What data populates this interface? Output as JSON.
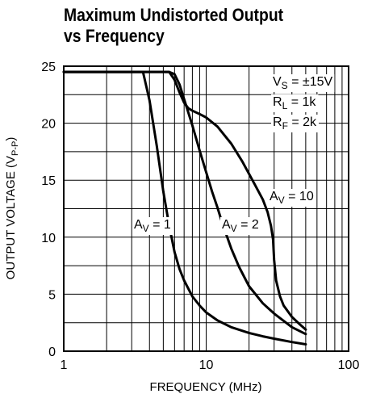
{
  "chart_data": {
    "type": "line",
    "title_lines": [
      "Maximum Undistorted Output",
      "vs Frequency"
    ],
    "xlabel": "FREQUENCY (MHz)",
    "ylabel": "OUTPUT VOLTAGE (V",
    "ylabel_sub": "P-P",
    "ylabel_close": ")",
    "x_scale": "log",
    "xlim": [
      1,
      100
    ],
    "ylim": [
      0,
      25
    ],
    "x_ticks": [
      1,
      10,
      100
    ],
    "y_ticks": [
      0,
      5,
      10,
      15,
      20,
      25
    ],
    "grid": true,
    "conditions": [
      {
        "main": "V",
        "sub": "S",
        "rest": " = ±15V"
      },
      {
        "main": "R",
        "sub": "L",
        "rest": " = 1k"
      },
      {
        "main": "R",
        "sub": "F",
        "rest": " = 2k"
      }
    ],
    "series": [
      {
        "name": {
          "main": "A",
          "sub": "V",
          "rest": " = 1"
        },
        "x": [
          1,
          3,
          3.6,
          4.0,
          4.5,
          5.0,
          5.5,
          6.0,
          6.5,
          7.0,
          8.0,
          9.0,
          10,
          12,
          15,
          20,
          25,
          30,
          40,
          50
        ],
        "y": [
          24.5,
          24.5,
          24.5,
          22.0,
          18.0,
          14.0,
          11.0,
          8.7,
          7.2,
          6.2,
          4.8,
          4.0,
          3.4,
          2.7,
          2.1,
          1.6,
          1.3,
          1.1,
          0.8,
          0.6
        ]
      },
      {
        "name": {
          "main": "A",
          "sub": "V",
          "rest": " = 2"
        },
        "x": [
          1,
          5.5,
          6.0,
          6.5,
          7.0,
          8.0,
          9.0,
          10,
          11,
          12,
          13,
          15,
          17,
          20,
          25,
          30,
          40,
          50
        ],
        "y": [
          24.5,
          24.5,
          24.3,
          23.4,
          22.1,
          19.8,
          17.6,
          15.7,
          14.0,
          12.6,
          11.2,
          9.0,
          7.4,
          5.7,
          4.2,
          3.3,
          2.1,
          1.5
        ]
      },
      {
        "name": {
          "main": "A",
          "sub": "V",
          "rest": " = 10"
        },
        "x": [
          1,
          5.5,
          6.0,
          6.5,
          7.0,
          7.5,
          8.0,
          9.0,
          10,
          12,
          15,
          18,
          22,
          25,
          27,
          28.5,
          29.5,
          30,
          31,
          33,
          35,
          40,
          45,
          50
        ],
        "y": [
          24.5,
          24.5,
          23.8,
          22.7,
          21.8,
          21.3,
          21.1,
          20.8,
          20.5,
          19.7,
          18.2,
          16.6,
          14.6,
          13.3,
          12.2,
          11.0,
          9.8,
          8.0,
          6.2,
          4.8,
          4.0,
          3.0,
          2.4,
          1.9
        ]
      }
    ]
  }
}
